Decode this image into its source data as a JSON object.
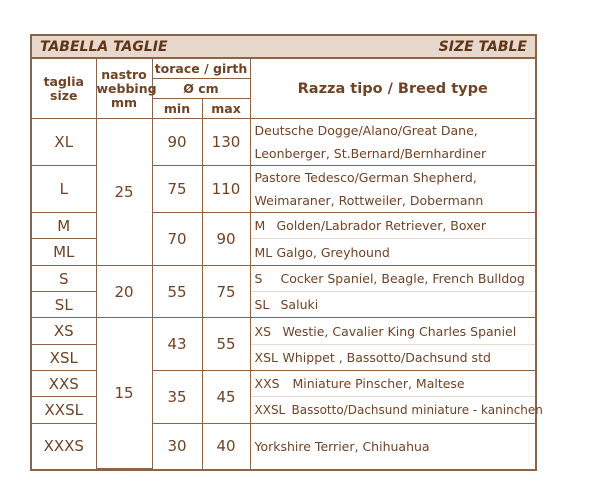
{
  "title_it": "TABELLA TAGLIE",
  "title_en": "SIZE TABLE",
  "headers": {
    "size_it": "taglia",
    "size_en": "size",
    "webbing_it": "nastro",
    "webbing_en": "webbing",
    "webbing_unit": "mm",
    "girth": "torace / girth",
    "girth_unit": "Ø cm",
    "min": "min",
    "max": "max",
    "breed": "Razza tipo / Breed type"
  },
  "webbing": [
    "25",
    "20",
    "15"
  ],
  "rows": [
    {
      "size": "XL",
      "min": "90",
      "max": "130",
      "breed": [
        "Deutsche Dogge/Alano/Great Dane,",
        "Leonberger, St.Bernard/Bernhardiner"
      ]
    },
    {
      "size": "L",
      "min": "75",
      "max": "110",
      "breed": [
        "Pastore Tedesco/German Shepherd,",
        "Weimaraner, Rottweiler, Dobermann"
      ]
    },
    {
      "size": "M",
      "code": "M",
      "breed": "Golden/Labrador Retriever, Boxer"
    },
    {
      "size": "ML",
      "code": "ML",
      "breed": "Galgo, Greyhound"
    },
    {
      "size": "S",
      "code": "S",
      "breed": "Cocker Spaniel, Beagle, French Bulldog"
    },
    {
      "size": "SL",
      "code": "SL",
      "breed": "Saluki"
    },
    {
      "size": "XS",
      "code": "XS",
      "breed": "Westie, Cavalier King Charles Spaniel"
    },
    {
      "size": "XSL",
      "code": "XSL",
      "breed": "Whippet , Bassotto/Dachsund std"
    },
    {
      "size": "XXS",
      "code": "XXS",
      "breed": "Miniature Pinscher, Maltese"
    },
    {
      "size": "XXSL",
      "code": "XXSL",
      "breed": "Bassotto/Dachsund miniature - kaninchen"
    },
    {
      "size": "XXXS",
      "min": "30",
      "max": "40",
      "breed": "Yorkshire Terrier, Chihuahua"
    }
  ],
  "pairs": [
    {
      "min": "70",
      "max": "90"
    },
    {
      "min": "55",
      "max": "75"
    },
    {
      "min": "43",
      "max": "55"
    },
    {
      "min": "35",
      "max": "45"
    }
  ]
}
